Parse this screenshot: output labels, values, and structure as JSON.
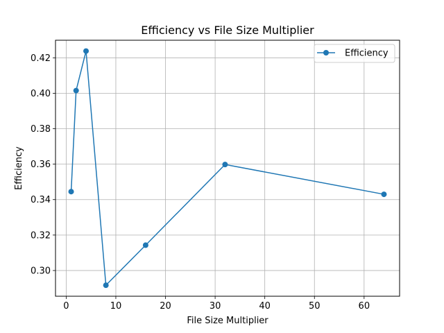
{
  "chart_data": {
    "type": "line",
    "title": "Efficiency vs File Size Multiplier",
    "xlabel": "File Size Multiplier",
    "ylabel": "Efficiency",
    "xlim": [
      -2.15,
      67.15
    ],
    "ylim": [
      0.2855,
      0.4299
    ],
    "xticks": [
      0,
      10,
      20,
      30,
      40,
      50,
      60
    ],
    "yticks": [
      0.3,
      0.32,
      0.34,
      0.36,
      0.38,
      0.4,
      0.42
    ],
    "xtick_labels": [
      "0",
      "10",
      "20",
      "30",
      "40",
      "50",
      "60"
    ],
    "ytick_labels": [
      "0.30",
      "0.32",
      "0.34",
      "0.36",
      "0.38",
      "0.40",
      "0.42"
    ],
    "grid": true,
    "legend_position": "top-right",
    "series": [
      {
        "name": "Efficiency",
        "color": "#1f77b4",
        "marker": "circle",
        "x": [
          1,
          2,
          4,
          8,
          16,
          32,
          64
        ],
        "y": [
          0.3445,
          0.4015,
          0.4238,
          0.2917,
          0.3143,
          0.3598,
          0.343
        ]
      }
    ]
  }
}
